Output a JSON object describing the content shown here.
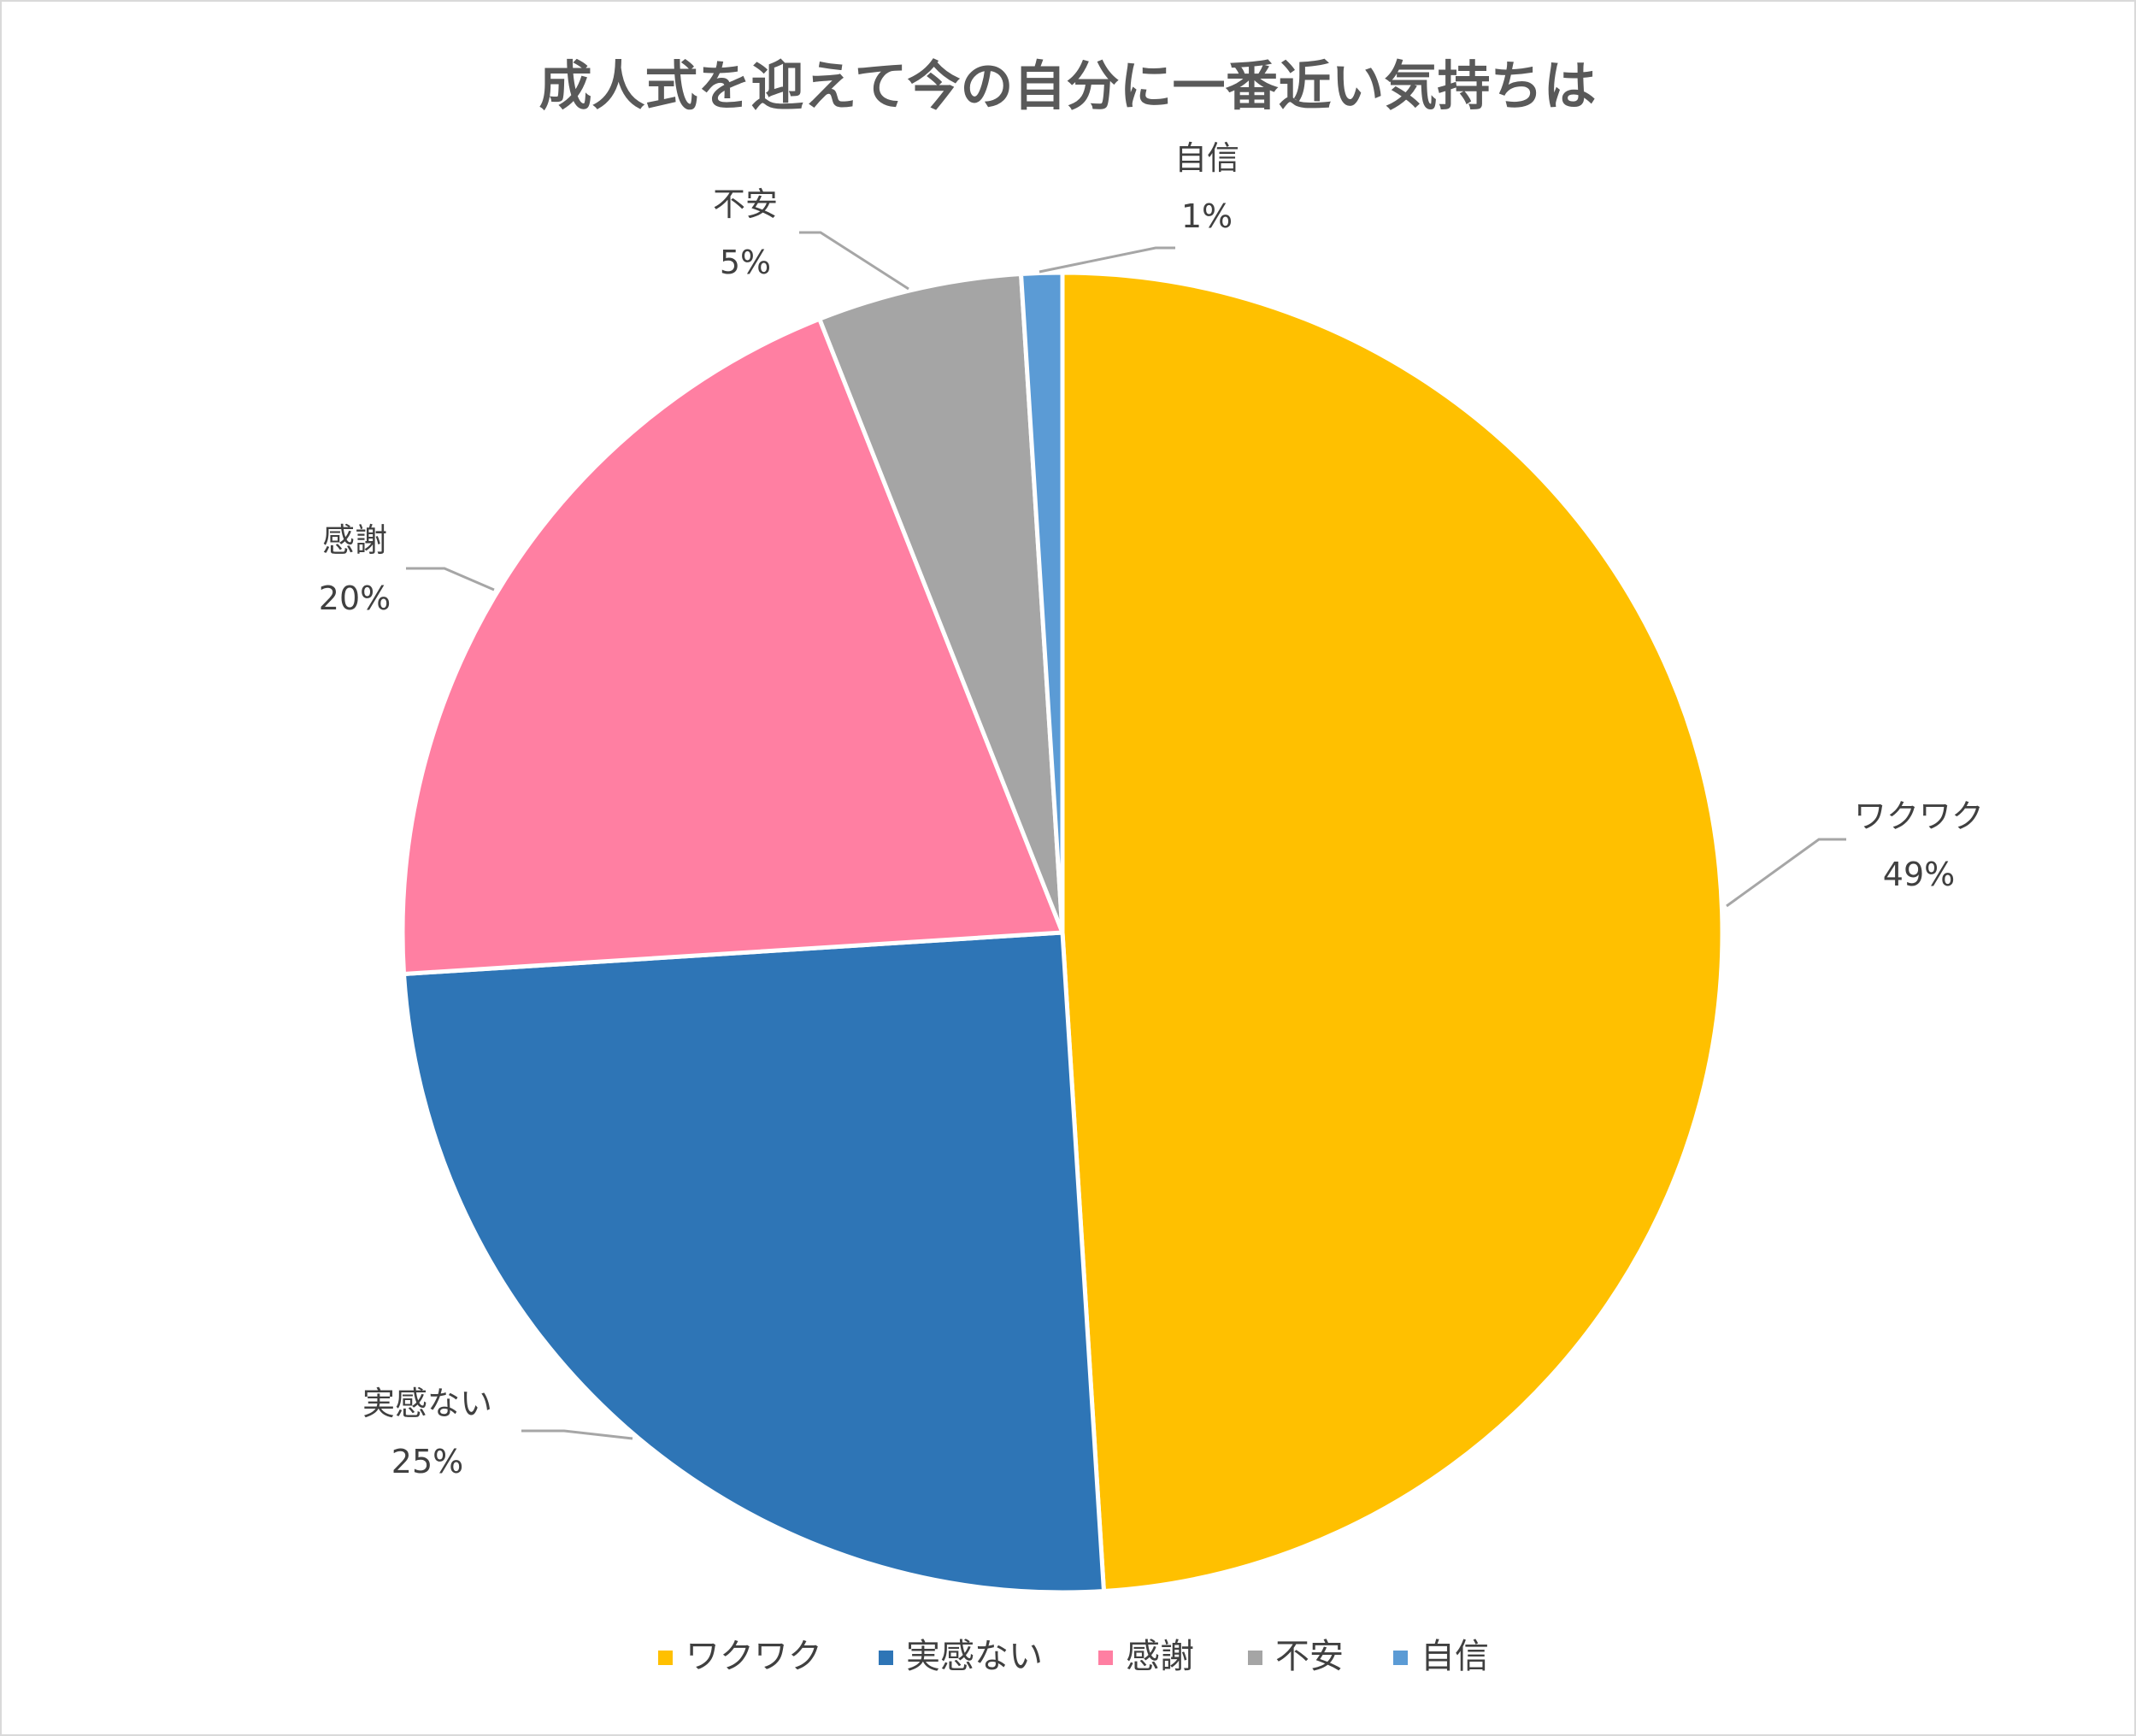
{
  "chart_data": {
    "type": "pie",
    "title": "成人式を迎えて今の自分に一番近い気持ちは",
    "categories": [
      "ワクワク",
      "実感ない",
      "感謝",
      "不安",
      "自信"
    ],
    "values": [
      49,
      25,
      20,
      5,
      1
    ],
    "data_labels": [
      "49%",
      "25%",
      "20%",
      "5%",
      "1%"
    ],
    "colors": [
      "#FFC000",
      "#2E75B6",
      "#FF7FA2",
      "#A5A5A5",
      "#5B9BD5"
    ],
    "start_angle_deg": 0,
    "direction": "clockwise",
    "legend_position": "bottom"
  }
}
